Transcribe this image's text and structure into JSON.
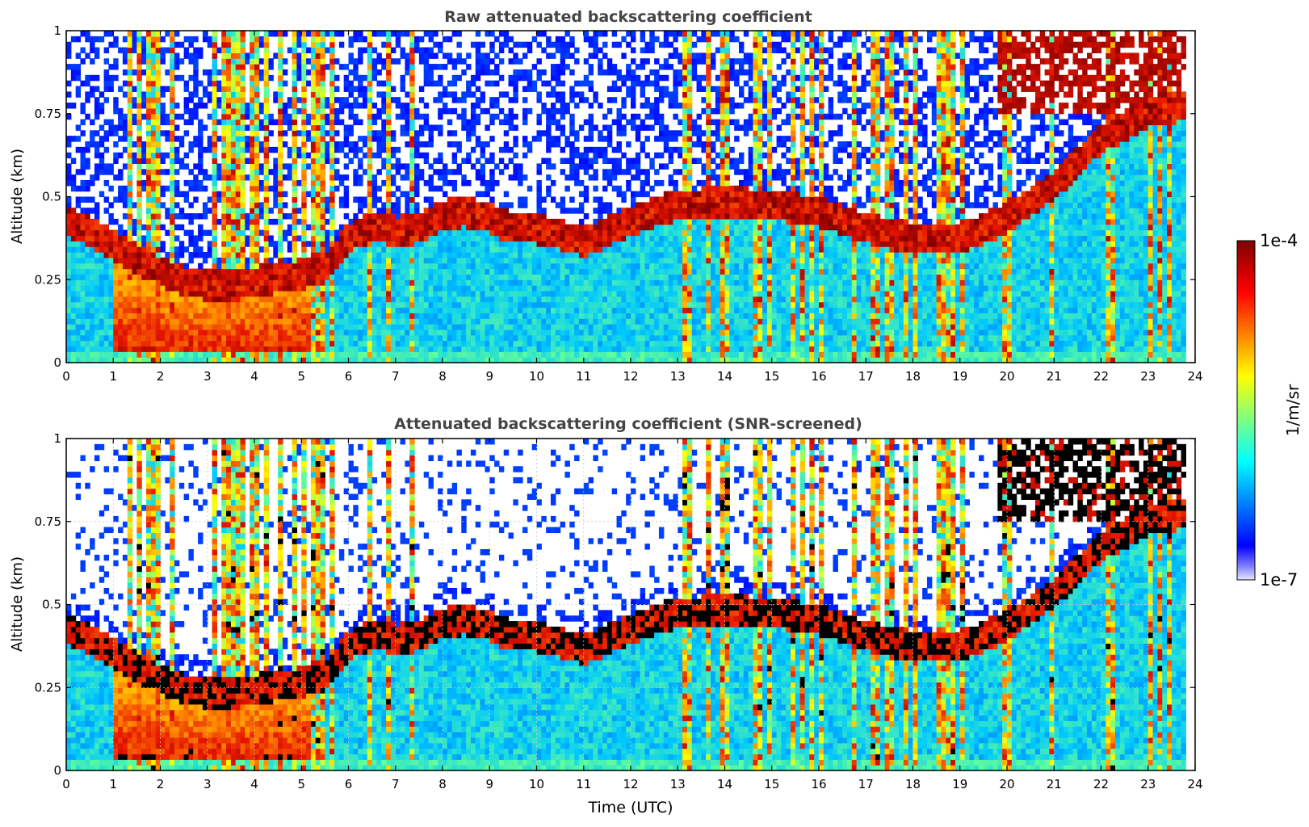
{
  "chart_data": [
    {
      "type": "heatmap",
      "title": "Raw attenuated backscattering coefficient",
      "xlabel": "",
      "ylabel": "Altitude (km)",
      "xlim": [
        0,
        24
      ],
      "ylim": [
        0,
        1
      ],
      "x_ticks": [
        "0",
        "1",
        "2",
        "3",
        "4",
        "5",
        "6",
        "7",
        "8",
        "9",
        "10",
        "11",
        "12",
        "13",
        "14",
        "15",
        "16",
        "17",
        "18",
        "19",
        "20",
        "21",
        "22",
        "23",
        "24"
      ],
      "y_ticks": [
        "0",
        "0.25",
        "0.5",
        "0.75",
        "1"
      ],
      "grid": false,
      "screened": false,
      "layer_top_km": [
        [
          0,
          0.47
        ],
        [
          0.5,
          0.44
        ],
        [
          1,
          0.4
        ],
        [
          1.5,
          0.36
        ],
        [
          2,
          0.32
        ],
        [
          2.5,
          0.29
        ],
        [
          3,
          0.28
        ],
        [
          3.5,
          0.28
        ],
        [
          4,
          0.29
        ],
        [
          4.5,
          0.3
        ],
        [
          5,
          0.31
        ],
        [
          5.5,
          0.33
        ],
        [
          6,
          0.42
        ],
        [
          6.5,
          0.46
        ],
        [
          7,
          0.44
        ],
        [
          7.5,
          0.45
        ],
        [
          8,
          0.49
        ],
        [
          8.5,
          0.5
        ],
        [
          9,
          0.48
        ],
        [
          9.5,
          0.45
        ],
        [
          10,
          0.45
        ],
        [
          10.5,
          0.43
        ],
        [
          11,
          0.41
        ],
        [
          11.5,
          0.44
        ],
        [
          12,
          0.47
        ],
        [
          12.5,
          0.5
        ],
        [
          13,
          0.52
        ],
        [
          14,
          0.53
        ],
        [
          15,
          0.52
        ],
        [
          16,
          0.5
        ],
        [
          17,
          0.45
        ],
        [
          18,
          0.42
        ],
        [
          19,
          0.42
        ],
        [
          20,
          0.48
        ],
        [
          21,
          0.58
        ],
        [
          22,
          0.72
        ],
        [
          23,
          0.8
        ],
        [
          23.8,
          0.82
        ]
      ]
    },
    {
      "type": "heatmap",
      "title": "Attenuated backscattering coefficient (SNR-screened)",
      "xlabel": "Time (UTC)",
      "ylabel": "Altitude (km)",
      "xlim": [
        0,
        24
      ],
      "ylim": [
        0,
        1
      ],
      "x_ticks": [
        "0",
        "1",
        "2",
        "3",
        "4",
        "5",
        "6",
        "7",
        "8",
        "9",
        "10",
        "11",
        "12",
        "13",
        "14",
        "15",
        "16",
        "17",
        "18",
        "19",
        "20",
        "21",
        "22",
        "23",
        "24"
      ],
      "y_ticks": [
        "0",
        "0.25",
        "0.5",
        "0.75",
        "1"
      ],
      "grid": true,
      "screened": true,
      "layer_top_km": [
        [
          0,
          0.47
        ],
        [
          0.5,
          0.44
        ],
        [
          1,
          0.4
        ],
        [
          1.5,
          0.36
        ],
        [
          2,
          0.32
        ],
        [
          2.5,
          0.29
        ],
        [
          3,
          0.28
        ],
        [
          3.5,
          0.28
        ],
        [
          4,
          0.29
        ],
        [
          4.5,
          0.3
        ],
        [
          5,
          0.31
        ],
        [
          5.5,
          0.33
        ],
        [
          6,
          0.42
        ],
        [
          6.5,
          0.46
        ],
        [
          7,
          0.44
        ],
        [
          7.5,
          0.45
        ],
        [
          8,
          0.49
        ],
        [
          8.5,
          0.5
        ],
        [
          9,
          0.48
        ],
        [
          9.5,
          0.45
        ],
        [
          10,
          0.45
        ],
        [
          10.5,
          0.43
        ],
        [
          11,
          0.41
        ],
        [
          11.5,
          0.44
        ],
        [
          12,
          0.47
        ],
        [
          12.5,
          0.5
        ],
        [
          13,
          0.52
        ],
        [
          14,
          0.53
        ],
        [
          15,
          0.52
        ],
        [
          16,
          0.5
        ],
        [
          17,
          0.45
        ],
        [
          18,
          0.42
        ],
        [
          19,
          0.42
        ],
        [
          20,
          0.48
        ],
        [
          21,
          0.58
        ],
        [
          22,
          0.72
        ],
        [
          23,
          0.8
        ],
        [
          23.8,
          0.82
        ]
      ]
    }
  ],
  "colorbar": {
    "label": "1/m/sr",
    "max_label": "1e-4",
    "min_label": "1e-7",
    "scale": "log",
    "colormap": "jet",
    "range": [
      1e-07,
      0.0001
    ]
  },
  "colors": {
    "title": "#444444",
    "axis": "#000000",
    "grid": "#c8c8c8"
  }
}
